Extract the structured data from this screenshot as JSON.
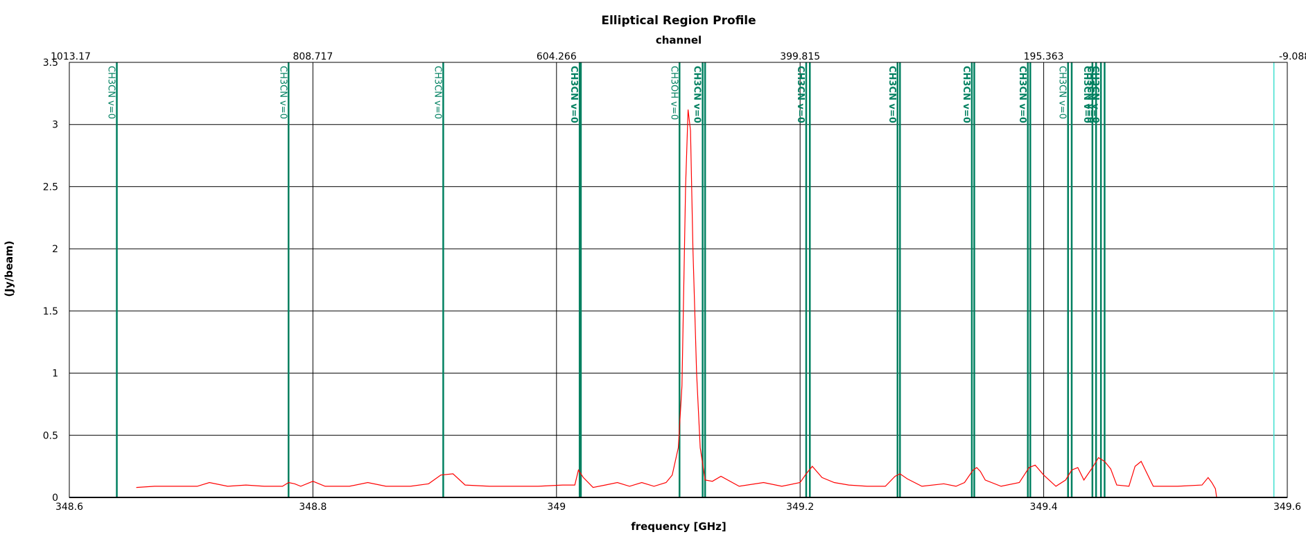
{
  "chart_data": {
    "type": "line",
    "title": "Elliptical Region Profile",
    "top_axis_label": "channel",
    "xlabel": "frequency [GHz]",
    "ylabel": "(Jy/beam)",
    "xlim": [
      348.6,
      349.6
    ],
    "ylim": [
      0,
      3.5
    ],
    "x_ticks": [
      348.6,
      348.8,
      349,
      349.2,
      349.4,
      349.6
    ],
    "x_tick_labels": [
      "348.6",
      "348.8",
      "349",
      "349.2",
      "349.4",
      "349.6"
    ],
    "y_ticks": [
      0,
      0.5,
      1,
      1.5,
      2,
      2.5,
      3,
      3.5
    ],
    "y_tick_labels": [
      "0",
      "0.5",
      "1",
      "1.5",
      "2",
      "2.5",
      "3",
      "3.5"
    ],
    "top_ticks": [
      {
        "freq": 348.6,
        "label": "1013.17"
      },
      {
        "freq": 348.8,
        "label": "808.717"
      },
      {
        "freq": 349.0,
        "label": "604.266"
      },
      {
        "freq": 349.2,
        "label": "399.815"
      },
      {
        "freq": 349.4,
        "label": "195.363"
      },
      {
        "freq": 349.6,
        "label": "-9.08823"
      }
    ],
    "grid": true,
    "colors": {
      "spectrum": "#ff0000",
      "lines": "#008060",
      "marker": "#40e0d0",
      "grid": "#000000"
    },
    "series": [
      {
        "color": "#ff0000",
        "x": [
          348.655,
          348.67,
          348.69,
          348.705,
          348.715,
          348.73,
          348.745,
          348.76,
          348.775,
          348.78,
          348.785,
          348.79,
          348.8,
          348.81,
          348.83,
          348.845,
          348.86,
          348.88,
          348.895,
          348.905,
          348.915,
          348.925,
          348.945,
          348.965,
          348.985,
          349.005,
          349.015,
          349.018,
          349.022,
          349.03,
          349.04,
          349.05,
          349.06,
          349.07,
          349.08,
          349.09,
          349.095,
          349.1,
          349.103,
          349.106,
          349.108,
          349.11,
          349.112,
          349.115,
          349.118,
          349.122,
          349.128,
          349.135,
          349.15,
          349.17,
          349.185,
          349.2,
          349.205,
          349.21,
          349.218,
          349.228,
          349.24,
          349.255,
          349.27,
          349.278,
          349.282,
          349.288,
          349.3,
          349.318,
          349.328,
          349.335,
          349.342,
          349.345,
          349.348,
          349.352,
          349.365,
          349.38,
          349.388,
          349.393,
          349.4,
          349.41,
          349.418,
          349.423,
          349.428,
          349.433,
          349.44,
          349.445,
          349.45,
          349.455,
          349.46,
          349.47,
          349.475,
          349.48,
          349.49,
          349.51,
          349.53,
          349.535,
          349.538,
          349.541,
          349.542
        ],
        "values": [
          0.08,
          0.09,
          0.09,
          0.09,
          0.12,
          0.09,
          0.1,
          0.09,
          0.09,
          0.12,
          0.11,
          0.09,
          0.13,
          0.09,
          0.09,
          0.12,
          0.09,
          0.09,
          0.11,
          0.18,
          0.19,
          0.1,
          0.09,
          0.09,
          0.09,
          0.1,
          0.1,
          0.22,
          0.16,
          0.08,
          0.1,
          0.12,
          0.09,
          0.12,
          0.09,
          0.12,
          0.18,
          0.4,
          0.9,
          2.5,
          3.12,
          2.95,
          2.0,
          1.0,
          0.4,
          0.14,
          0.13,
          0.17,
          0.09,
          0.12,
          0.09,
          0.12,
          0.19,
          0.25,
          0.16,
          0.12,
          0.1,
          0.09,
          0.09,
          0.17,
          0.19,
          0.15,
          0.09,
          0.11,
          0.09,
          0.12,
          0.22,
          0.24,
          0.21,
          0.14,
          0.09,
          0.12,
          0.24,
          0.26,
          0.18,
          0.09,
          0.14,
          0.22,
          0.24,
          0.14,
          0.24,
          0.32,
          0.29,
          0.23,
          0.1,
          0.09,
          0.25,
          0.29,
          0.09,
          0.09,
          0.1,
          0.16,
          0.12,
          0.07,
          0.0
        ]
      }
    ],
    "lines": [
      {
        "freq": 348.639,
        "label": "CH3CN v=0",
        "bold": false
      },
      {
        "freq": 348.78,
        "label": "CH3CN v=0",
        "bold": false
      },
      {
        "freq": 348.907,
        "label": "CH3CN v=0",
        "bold": false
      },
      {
        "freq": 349.019,
        "label": "CH3CN v=0",
        "bold": true
      },
      {
        "freq": 349.02,
        "label": "",
        "bold": false
      },
      {
        "freq": 349.101,
        "label": "CH3OH v=0",
        "bold": false
      },
      {
        "freq": 349.12,
        "label": "CH3CN v=0",
        "bold": true
      },
      {
        "freq": 349.122,
        "label": "",
        "bold": false
      },
      {
        "freq": 349.205,
        "label": "CH3CN v=0",
        "bold": true
      },
      {
        "freq": 349.208,
        "label": "",
        "bold": false
      },
      {
        "freq": 349.28,
        "label": "CH3CN v=0",
        "bold": true
      },
      {
        "freq": 349.282,
        "label": "",
        "bold": false
      },
      {
        "freq": 349.341,
        "label": "CH3CN v=0",
        "bold": true
      },
      {
        "freq": 349.343,
        "label": "",
        "bold": false
      },
      {
        "freq": 349.387,
        "label": "CH3CN v=0",
        "bold": true
      },
      {
        "freq": 349.389,
        "label": "",
        "bold": false
      },
      {
        "freq": 349.42,
        "label": "CH3CN v=0",
        "bold": false
      },
      {
        "freq": 349.423,
        "label": "",
        "bold": false
      },
      {
        "freq": 349.44,
        "label": "CH3CN v=0",
        "bold": true
      },
      {
        "freq": 349.443,
        "label": "CH3CN v=0",
        "bold": true
      },
      {
        "freq": 349.447,
        "label": "CH3CN v=0",
        "bold": true
      },
      {
        "freq": 349.45,
        "label": "",
        "bold": false
      }
    ],
    "marker": {
      "freq": 349.589
    }
  }
}
